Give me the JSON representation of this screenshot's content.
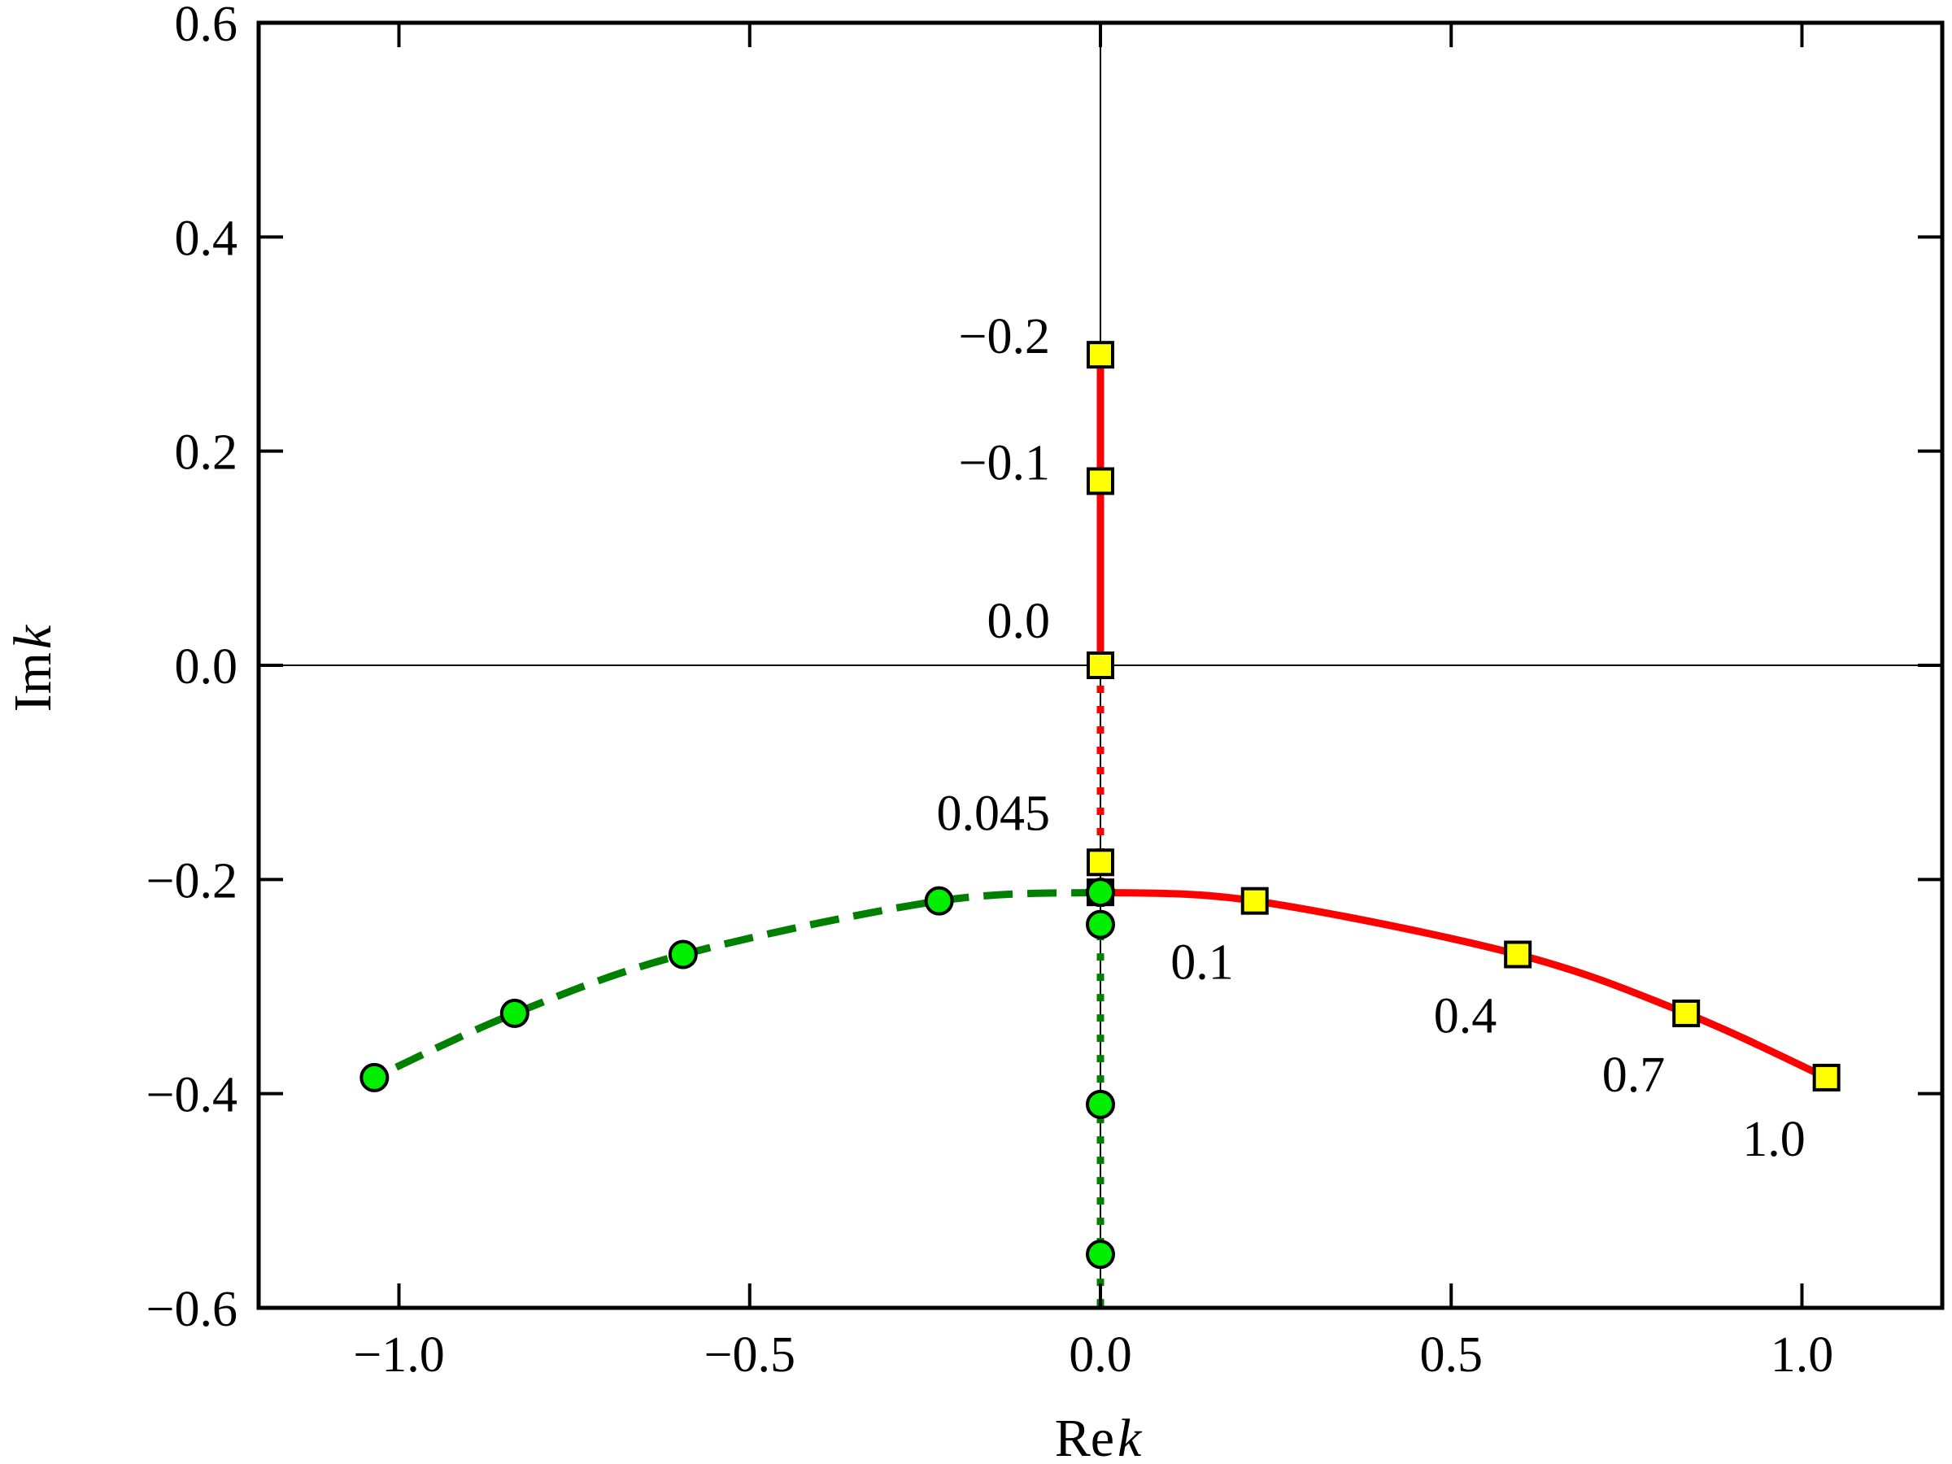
{
  "chart_data": {
    "type": "line",
    "title": "",
    "xlabel": {
      "main": "Re",
      "italic": "k"
    },
    "ylabel": {
      "main": "Im",
      "italic": "k"
    },
    "xlim": [
      -1.2,
      1.2
    ],
    "ylim": [
      -0.6,
      0.6
    ],
    "xticks": [
      -1.0,
      -0.5,
      0.0,
      0.5,
      1.0
    ],
    "yticks": [
      -0.6,
      -0.4,
      -0.2,
      0.0,
      0.2,
      0.4,
      0.6
    ],
    "xtick_labels": [
      "−1.0",
      "−0.5",
      "0.0",
      "0.5",
      "1.0"
    ],
    "ytick_labels": [
      "−0.6",
      "−0.4",
      "−0.2",
      "0.0",
      "0.2",
      "0.4",
      "0.6"
    ],
    "grid": false,
    "reference_lines": {
      "x": 0.0,
      "y": 0.0,
      "color": "#000000"
    },
    "series": [
      {
        "style": "solid",
        "color": "#ff0000",
        "marker": "square",
        "marker_fill": "#ffff00",
        "x": [
          0.0,
          0.0,
          0.0
        ],
        "y": [
          0.29,
          0.172,
          0.0
        ],
        "labels": [
          "−0.2",
          "−0.1",
          "0.0"
        ]
      },
      {
        "style": "dotted",
        "color": "#ff0000",
        "marker": "square",
        "marker_fill": "#ffff00",
        "x": [
          0.0,
          0.0
        ],
        "y": [
          0.0,
          -0.184
        ],
        "labels": [
          "",
          "0.045"
        ]
      },
      {
        "style": "solid",
        "color": "#ff0000",
        "marker": "square",
        "marker_fill": "#ffff00",
        "x": [
          0.0,
          0.22,
          0.595,
          0.835,
          1.035
        ],
        "y": [
          -0.212,
          -0.22,
          -0.27,
          -0.325,
          -0.385
        ],
        "labels": [
          "",
          "0.1",
          "0.4",
          "0.7",
          "1.0"
        ]
      },
      {
        "style": "dashed",
        "color": "#008000",
        "marker": "circle",
        "marker_fill": "#00ee00",
        "x": [
          0.0,
          -0.23,
          -0.595,
          -0.835,
          -1.035
        ],
        "y": [
          -0.212,
          -0.22,
          -0.27,
          -0.325,
          -0.385
        ]
      },
      {
        "style": "dotted",
        "color": "#008000",
        "marker": "circle",
        "marker_fill": "#00ee00",
        "x": [
          0.0,
          0.0,
          0.0,
          0.0,
          0.0
        ],
        "y": [
          -0.212,
          -0.242,
          -0.41,
          -0.55,
          -0.6
        ]
      }
    ]
  }
}
